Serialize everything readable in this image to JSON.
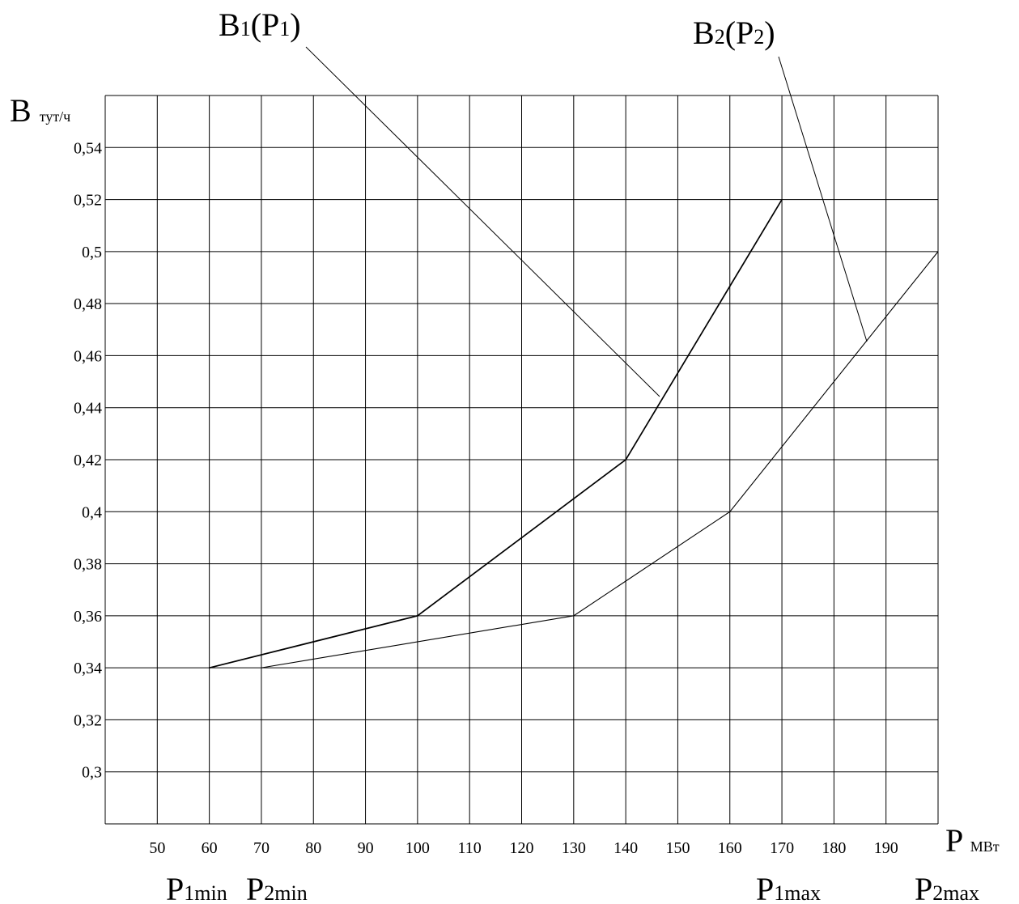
{
  "chart_data": {
    "type": "line",
    "xlabel": {
      "main": "P",
      "unit": "МВт"
    },
    "ylabel": {
      "main": "B",
      "unit": "тут/ч"
    },
    "x_ticks": [
      50,
      60,
      70,
      80,
      90,
      100,
      110,
      120,
      130,
      140,
      150,
      160,
      170,
      180,
      190
    ],
    "y_ticks": [
      "0,3",
      "0,32",
      "0,34",
      "0,36",
      "0,38",
      "0,4",
      "0,42",
      "0,44",
      "0,46",
      "0,48",
      "0,5",
      "0,52",
      "0,54"
    ],
    "y_values": [
      0.3,
      0.32,
      0.34,
      0.36,
      0.38,
      0.4,
      0.42,
      0.44,
      0.46,
      0.48,
      0.5,
      0.52,
      0.54
    ],
    "xlim": [
      40,
      200
    ],
    "ylim": [
      0.28,
      0.56
    ],
    "grid": true,
    "series": [
      {
        "name": "B1(P1)",
        "label_main": "B",
        "label_sub": "1",
        "label_arg_main": "P",
        "label_arg_sub": "1",
        "x": [
          60,
          100,
          140,
          170
        ],
        "y": [
          0.34,
          0.36,
          0.42,
          0.52
        ]
      },
      {
        "name": "B2(P2)",
        "label_main": "B",
        "label_sub": "2",
        "label_arg_main": "P",
        "label_arg_sub": "2",
        "x": [
          70,
          130,
          160,
          200
        ],
        "y": [
          0.34,
          0.36,
          0.4,
          0.5
        ]
      }
    ],
    "annotations": [
      {
        "main": "P",
        "sub": "1min",
        "at_x": 60
      },
      {
        "main": "P",
        "sub": "2min",
        "at_x": 70
      },
      {
        "main": "P",
        "sub": "1max",
        "at_x": 170
      },
      {
        "main": "P",
        "sub": "2max",
        "at_x": 200
      }
    ]
  }
}
